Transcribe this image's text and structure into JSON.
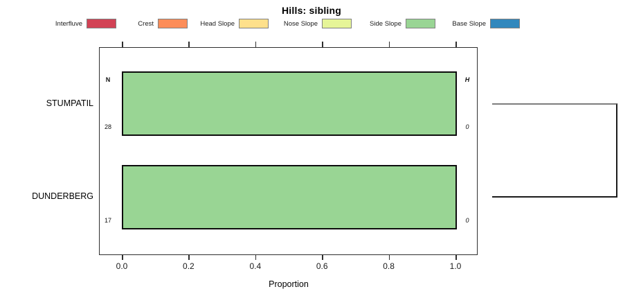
{
  "title": "Hills: sibling",
  "legend": {
    "items": [
      {
        "label": "Interfluve",
        "color": "#D24255"
      },
      {
        "label": "Crest",
        "color": "#FC8D59"
      },
      {
        "label": "Head Slope",
        "color": "#FEE08B"
      },
      {
        "label": "Nose Slope",
        "color": "#E6F598"
      },
      {
        "label": "Side Slope",
        "color": "#99D594"
      },
      {
        "label": "Base Slope",
        "color": "#3288BD"
      }
    ]
  },
  "chart_data": {
    "type": "bar",
    "orientation": "horizontal",
    "title": "Hills: sibling",
    "xlabel": "Proportion",
    "xlim": [
      0,
      1
    ],
    "x_ticks": [
      "0.0",
      "0.2",
      "0.4",
      "0.6",
      "0.8",
      "1.0"
    ],
    "categories": [
      "STUMPATIL",
      "DUNDERBERG"
    ],
    "series": [
      {
        "name": "Side Slope",
        "color": "#99D594",
        "values": [
          1.0,
          1.0
        ]
      }
    ],
    "annotations": {
      "n_header": "N",
      "h_header": "H",
      "rows": [
        {
          "category": "STUMPATIL",
          "n": "28",
          "h": "0"
        },
        {
          "category": "DUNDERBERG",
          "n": "17",
          "h": "0"
        }
      ]
    },
    "legend_position": "top",
    "grid": false
  }
}
